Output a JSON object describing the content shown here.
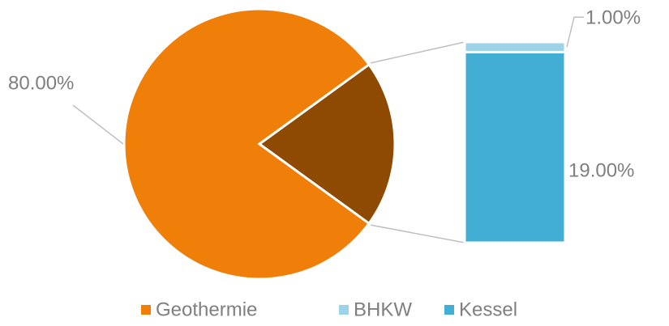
{
  "chart_data": {
    "type": "pie",
    "categories": [
      "Geothermie",
      "BHKW",
      "Kessel"
    ],
    "values": [
      80,
      1,
      19
    ],
    "value_labels": [
      "80.00%",
      "1.00%",
      "19.00%"
    ],
    "colors": [
      "#f07f09",
      "#9dd3e6",
      "#42aed4"
    ],
    "other_color": "#8e4a00",
    "legend": "bottom"
  }
}
